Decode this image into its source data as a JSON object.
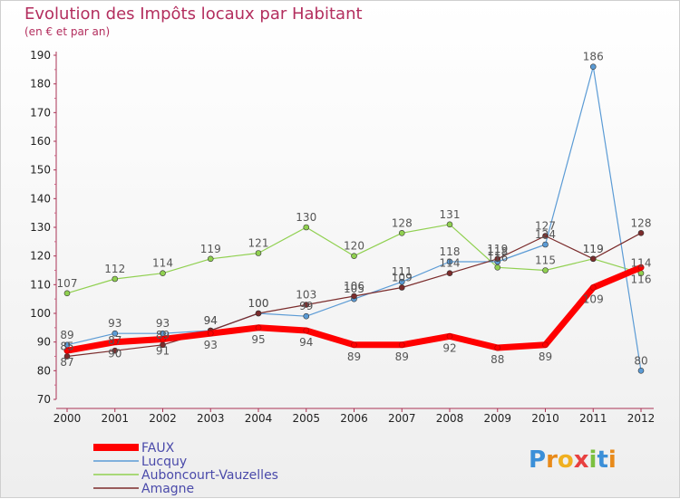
{
  "header": {
    "title": "Evolution des Impôts locaux par Habitant",
    "subtitle": "(en € et par an)"
  },
  "brand": {
    "logo_text": "Proxiti"
  },
  "chart_data": {
    "type": "line",
    "title": "Evolution des Impôts locaux par Habitant",
    "subtitle": "(en € et par an)",
    "xlabel": "",
    "ylabel": "",
    "categories": [
      "2000",
      "2001",
      "2002",
      "2003",
      "2004",
      "2005",
      "2006",
      "2007",
      "2008",
      "2009",
      "2010",
      "2011",
      "2012"
    ],
    "ylim": [
      70,
      190
    ],
    "yticks": [
      70,
      80,
      90,
      100,
      110,
      120,
      130,
      140,
      150,
      160,
      170,
      180,
      190
    ],
    "grid": false,
    "legend_position": "bottom-left",
    "series": [
      {
        "name": "FAUX",
        "color": "#ff0000",
        "values": [
          87,
          90,
          91,
          93,
          95,
          94,
          89,
          89,
          92,
          88,
          89,
          109,
          116
        ]
      },
      {
        "name": "Lucquy",
        "color": "#5b9bd5",
        "values": [
          89,
          93,
          93,
          94,
          100,
          99,
          105,
          111,
          118,
          118,
          124,
          186,
          80
        ]
      },
      {
        "name": "Auboncourt-Vauzelles",
        "color": "#90d050",
        "values": [
          107,
          112,
          114,
          119,
          121,
          130,
          120,
          128,
          131,
          116,
          115,
          119,
          114
        ]
      },
      {
        "name": "Amagne",
        "color": "#7b2c2c",
        "values": [
          85,
          87,
          89,
          94,
          100,
          103,
          106,
          109,
          114,
          119,
          127,
          119,
          128
        ]
      }
    ]
  }
}
